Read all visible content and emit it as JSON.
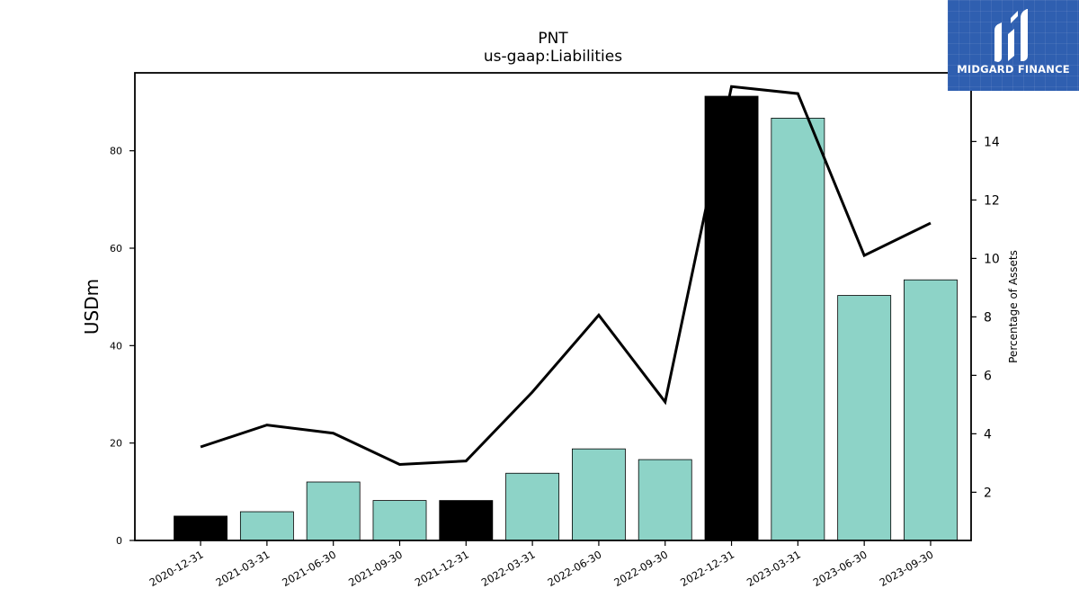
{
  "brand": {
    "name": "MIDGARD FINANCE",
    "bg_color": "#2f5fb0"
  },
  "chart_data": {
    "type": "bar",
    "title": "PNT",
    "subtitle": "us-gaap:Liabilities",
    "categories": [
      "2020-12-31",
      "2021-03-31",
      "2021-06-30",
      "2021-09-30",
      "2021-12-31",
      "2022-03-31",
      "2022-06-30",
      "2022-09-30",
      "2022-12-31",
      "2023-03-31",
      "2023-06-30",
      "2023-09-30"
    ],
    "series": [
      {
        "type": "bar",
        "axis": "left",
        "values": [
          5.0,
          5.9,
          12.0,
          8.2,
          8.2,
          13.8,
          18.8,
          16.6,
          91.2,
          86.7,
          50.3,
          53.5
        ],
        "colors": [
          "#000000",
          "#8dd3c7",
          "#8dd3c7",
          "#8dd3c7",
          "#000000",
          "#8dd3c7",
          "#8dd3c7",
          "#8dd3c7",
          "#000000",
          "#8dd3c7",
          "#8dd3c7",
          "#8dd3c7"
        ]
      },
      {
        "type": "line",
        "axis": "right",
        "color": "#000000",
        "values": [
          3.55,
          4.3,
          4.02,
          2.95,
          3.07,
          5.43,
          8.06,
          5.09,
          15.88,
          15.64,
          10.1,
          11.21
        ]
      }
    ],
    "ylabel": "USDm",
    "ylim": [
      0,
      96
    ],
    "yticks": [
      0,
      20,
      40,
      60,
      80
    ],
    "y2label": "Percentage of Assets",
    "y2lim": [
      0.35,
      16.35
    ],
    "y2ticks": [
      2,
      4,
      6,
      8,
      10,
      12,
      14
    ],
    "grid": false,
    "legend": "none"
  }
}
